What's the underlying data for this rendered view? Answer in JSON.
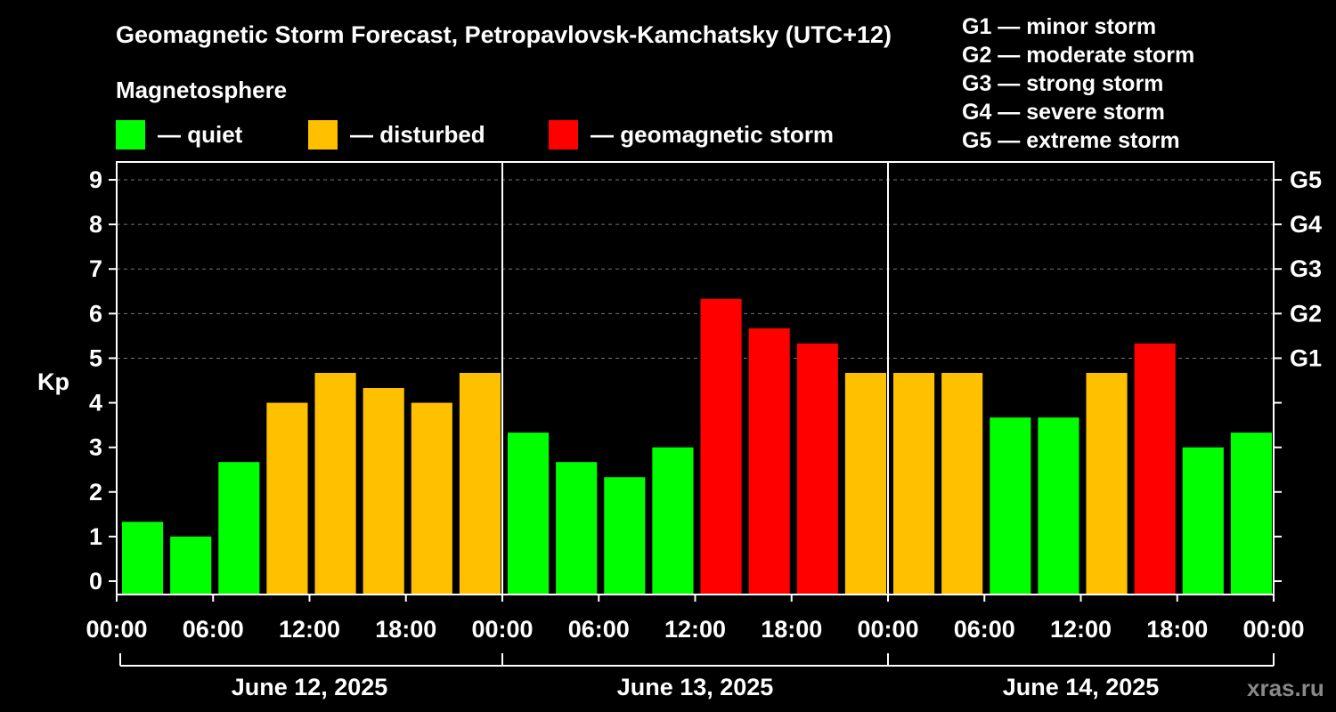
{
  "header": {
    "title": "Geomagnetic Storm Forecast, Petropavlovsk-Kamchatsky (UTC+12)",
    "subtitle": "Magnetosphere"
  },
  "legend": [
    {
      "label": "— quiet",
      "color": "#00ff00"
    },
    {
      "label": "— disturbed",
      "color": "#ffc000"
    },
    {
      "label": "— geomagnetic storm",
      "color": "#ff0000"
    }
  ],
  "storm_scale": [
    "G1 — minor storm",
    "G2 — moderate storm",
    "G3 — strong storm",
    "G4 — severe storm",
    "G5 — extreme storm"
  ],
  "watermark": "xras.ru",
  "colors": {
    "quiet": "#00ff00",
    "disturbed": "#ffc000",
    "storm": "#ff0000"
  },
  "chart_data": {
    "type": "bar",
    "ylabel": "Kp",
    "ylim": [
      -0.3,
      9.4
    ],
    "yticks": [
      "0",
      "1",
      "2",
      "3",
      "4",
      "5",
      "6",
      "7",
      "8",
      "9"
    ],
    "right_ticks": [
      {
        "kp": 5,
        "label": "G1"
      },
      {
        "kp": 6,
        "label": "G2"
      },
      {
        "kp": 7,
        "label": "G3"
      },
      {
        "kp": 8,
        "label": "G4"
      },
      {
        "kp": 9,
        "label": "G5"
      }
    ],
    "x_tick_labels": [
      "00:00",
      "06:00",
      "12:00",
      "18:00",
      "00:00",
      "06:00",
      "12:00",
      "18:00",
      "00:00",
      "06:00",
      "12:00",
      "18:00",
      "00:00"
    ],
    "days": [
      "June 12, 2025",
      "June 13, 2025",
      "June 14, 2025"
    ],
    "values": [
      1.33,
      1.0,
      2.67,
      4.0,
      4.67,
      4.33,
      4.0,
      4.67,
      3.33,
      2.67,
      2.33,
      3.0,
      6.33,
      5.67,
      5.33,
      4.67,
      4.67,
      4.67,
      3.67,
      3.67,
      4.67,
      5.33,
      3.0,
      3.33
    ],
    "levels": [
      "quiet",
      "quiet",
      "quiet",
      "disturbed",
      "disturbed",
      "disturbed",
      "disturbed",
      "disturbed",
      "quiet",
      "quiet",
      "quiet",
      "quiet",
      "storm",
      "storm",
      "storm",
      "disturbed",
      "disturbed",
      "disturbed",
      "quiet",
      "quiet",
      "disturbed",
      "storm",
      "quiet",
      "quiet"
    ]
  }
}
